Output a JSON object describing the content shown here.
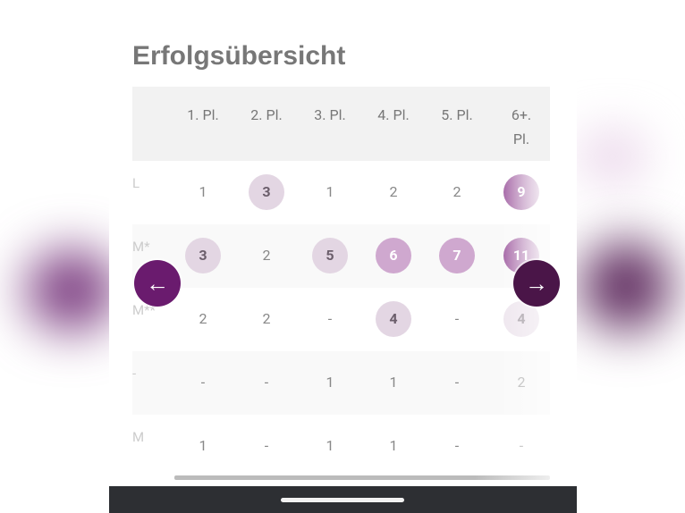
{
  "title": "Erfolgsübersicht",
  "columns": [
    "1. Pl.",
    "2. Pl.",
    "3. Pl.",
    "4. Pl.",
    "5. Pl.",
    "6+. Pl."
  ],
  "rows": [
    {
      "label": "L",
      "cells": [
        {
          "v": "1",
          "lv": 0
        },
        {
          "v": "3",
          "lv": 1
        },
        {
          "v": "1",
          "lv": 0
        },
        {
          "v": "2",
          "lv": 0
        },
        {
          "v": "2",
          "lv": 0
        },
        {
          "v": "9",
          "lv": 3
        }
      ]
    },
    {
      "label": "M*",
      "cells": [
        {
          "v": "3",
          "lv": 1
        },
        {
          "v": "2",
          "lv": 0
        },
        {
          "v": "5",
          "lv": 1
        },
        {
          "v": "6",
          "lv": 2
        },
        {
          "v": "7",
          "lv": 2
        },
        {
          "v": "11",
          "lv": 3
        }
      ]
    },
    {
      "label": "M**",
      "cells": [
        {
          "v": "2",
          "lv": 0
        },
        {
          "v": "2",
          "lv": 0
        },
        {
          "v": "-",
          "lv": 0
        },
        {
          "v": "4",
          "lv": 1
        },
        {
          "v": "-",
          "lv": 0
        },
        {
          "v": "4",
          "lv": 1
        }
      ]
    },
    {
      "label": "-",
      "cells": [
        {
          "v": "-",
          "lv": 0
        },
        {
          "v": "-",
          "lv": 0
        },
        {
          "v": "1",
          "lv": 0
        },
        {
          "v": "1",
          "lv": 0
        },
        {
          "v": "-",
          "lv": 0
        },
        {
          "v": "2",
          "lv": 0
        }
      ]
    },
    {
      "label": "M",
      "cells": [
        {
          "v": "1",
          "lv": 0
        },
        {
          "v": "-",
          "lv": 0
        },
        {
          "v": "1",
          "lv": 0
        },
        {
          "v": "1",
          "lv": 0
        },
        {
          "v": "-",
          "lv": 0
        },
        {
          "v": "-",
          "lv": 0
        }
      ]
    }
  ],
  "nav": {
    "prev_icon": "arrow-left-icon",
    "next_icon": "arrow-right-icon",
    "prev": "←",
    "next": "→"
  },
  "colors": {
    "accent": "#6a1b6e",
    "accent_dark": "#4a1548"
  }
}
